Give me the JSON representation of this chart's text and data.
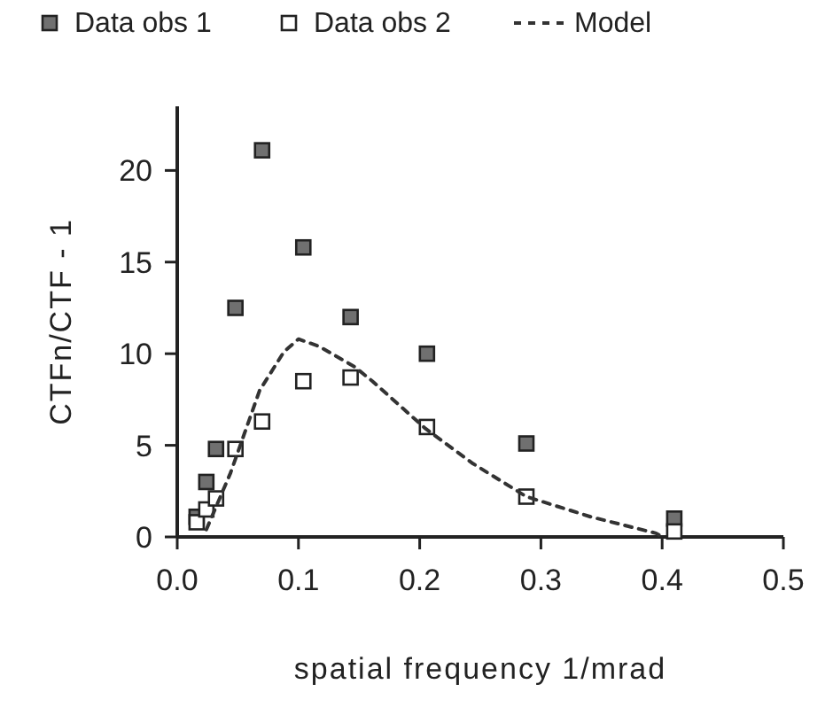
{
  "chart_data": {
    "type": "scatter",
    "xlabel": "spatial frequency 1/mrad",
    "ylabel": "CTFn/CTF - 1",
    "xlim": [
      0,
      0.5
    ],
    "xticks": [
      {
        "value": 0,
        "label": "0.0"
      },
      0.1,
      0.2,
      0.3,
      0.4,
      0.5
    ],
    "ylim": [
      0,
      23.5
    ],
    "yticks": [
      0,
      5,
      10,
      15,
      20
    ],
    "legend": "top",
    "marker": "square",
    "grid": false,
    "series": [
      {
        "name": "Data obs 1",
        "type": "scatter",
        "color": "#707070",
        "x": [
          0.016,
          0.024,
          0.032,
          0.048,
          0.07,
          0.104,
          0.143,
          0.206,
          0.288,
          0.41
        ],
        "values": [
          1.1,
          3.0,
          4.8,
          12.5,
          21.1,
          15.8,
          12.0,
          10.0,
          5.1,
          1.0
        ]
      },
      {
        "name": "Data obs 2",
        "type": "scatter",
        "color": "#ffffff",
        "x": [
          0.016,
          0.024,
          0.032,
          0.048,
          0.07,
          0.104,
          0.143,
          0.206,
          0.288,
          0.41
        ],
        "values": [
          0.8,
          1.5,
          2.1,
          4.8,
          6.3,
          8.5,
          8.7,
          6.0,
          2.2,
          0.3
        ]
      },
      {
        "name": "Model",
        "type": "line",
        "color": "#333333",
        "line_style": "dashed",
        "marker": "none",
        "x": [
          0.024,
          0.044,
          0.068,
          0.088,
          0.1,
          0.117,
          0.146,
          0.161,
          0.205,
          0.244,
          0.288,
          0.341,
          0.395,
          0.4
        ],
        "values": [
          0.4,
          3.5,
          8.0,
          10.1,
          10.8,
          10.4,
          9.3,
          8.5,
          5.9,
          4.0,
          2.2,
          1.1,
          0.2,
          0
        ]
      }
    ]
  }
}
